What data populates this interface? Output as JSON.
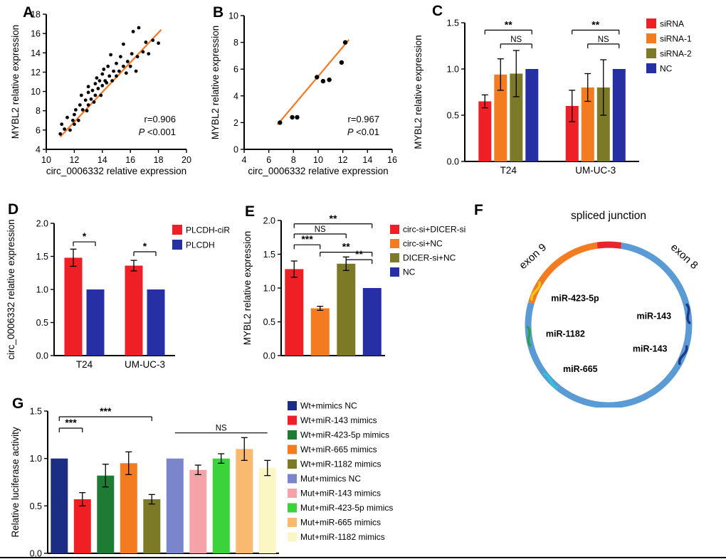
{
  "chart_data": [
    {
      "id": "A",
      "label": "A",
      "type": "scatter",
      "xlabel": "circ_0006332 relative expression",
      "ylabel": "MYBL2 relative expression",
      "xlim": [
        10,
        20
      ],
      "xticks": [
        10,
        12,
        14,
        16,
        18,
        20
      ],
      "ylim": [
        4,
        18
      ],
      "yticks": [
        4,
        6,
        8,
        10,
        12,
        14,
        16,
        18
      ],
      "r_text": "r=0.906",
      "p_label": "P",
      "p_text": " <0.001",
      "trend": {
        "x1": 11.0,
        "y1": 5.3,
        "x2": 18.2,
        "y2": 16.4
      },
      "trend_color": "#F8761F",
      "point_color": "#000000",
      "points": [
        [
          11.0,
          5.6
        ],
        [
          11.1,
          6.6
        ],
        [
          11.3,
          6.1
        ],
        [
          11.5,
          7.3
        ],
        [
          11.7,
          6.0
        ],
        [
          11.9,
          7.0
        ],
        [
          12.0,
          6.6
        ],
        [
          12.0,
          7.6
        ],
        [
          12.1,
          8.1
        ],
        [
          12.3,
          7.0
        ],
        [
          12.4,
          8.6
        ],
        [
          12.5,
          9.6
        ],
        [
          12.6,
          8.1
        ],
        [
          12.8,
          9.1
        ],
        [
          12.9,
          8.0
        ],
        [
          13.0,
          8.6
        ],
        [
          13.0,
          9.9
        ],
        [
          13.0,
          10.5
        ],
        [
          13.2,
          9.2
        ],
        [
          13.3,
          10.1
        ],
        [
          13.4,
          8.9
        ],
        [
          13.5,
          10.8
        ],
        [
          13.5,
          9.6
        ],
        [
          13.6,
          11.4
        ],
        [
          13.7,
          10.3
        ],
        [
          13.8,
          11.1
        ],
        [
          13.9,
          9.6
        ],
        [
          14.0,
          10.6
        ],
        [
          14.0,
          11.8
        ],
        [
          14.1,
          12.3
        ],
        [
          14.2,
          11.1
        ],
        [
          14.3,
          10.9
        ],
        [
          14.4,
          12.6
        ],
        [
          14.5,
          11.6
        ],
        [
          14.6,
          13.8
        ],
        [
          14.7,
          11.1
        ],
        [
          14.8,
          12.1
        ],
        [
          15.0,
          11.6
        ],
        [
          15.0,
          12.9
        ],
        [
          15.2,
          12.1
        ],
        [
          15.3,
          13.6
        ],
        [
          15.5,
          12.6
        ],
        [
          15.5,
          14.9
        ],
        [
          15.7,
          11.9
        ],
        [
          15.8,
          13.1
        ],
        [
          16.0,
          12.6
        ],
        [
          16.1,
          13.9
        ],
        [
          16.2,
          16.2
        ],
        [
          16.4,
          12.1
        ],
        [
          16.5,
          13.6
        ],
        [
          16.6,
          16.6
        ],
        [
          16.9,
          14.1
        ],
        [
          17.1,
          15.1
        ],
        [
          17.3,
          13.9
        ],
        [
          17.6,
          15.3
        ],
        [
          18.0,
          15.0
        ]
      ]
    },
    {
      "id": "B",
      "label": "B",
      "type": "scatter",
      "xlabel": "circ_0006332 relative expression",
      "ylabel": "MYBL2 relative expression",
      "xlim": [
        4,
        16
      ],
      "xticks": [
        4,
        6,
        8,
        10,
        12,
        14,
        16
      ],
      "ylim": [
        0,
        10
      ],
      "yticks": [
        0,
        2,
        4,
        6,
        8,
        10
      ],
      "r_text": "r=0.967",
      "p_label": "P",
      "p_text": " <0.01",
      "trend": {
        "x1": 6.7,
        "y1": 1.85,
        "x2": 12.5,
        "y2": 8.2
      },
      "trend_color": "#F8761F",
      "point_color": "#000000",
      "points": [
        [
          6.9,
          2.0
        ],
        [
          7.9,
          2.4
        ],
        [
          8.3,
          2.4
        ],
        [
          9.9,
          5.4
        ],
        [
          10.4,
          5.1
        ],
        [
          10.9,
          5.2
        ],
        [
          11.9,
          6.5
        ],
        [
          12.2,
          8.0
        ]
      ]
    },
    {
      "id": "C",
      "label": "C",
      "type": "grouped-bars",
      "ylabel": "MYBL2 relative expression",
      "ylim": [
        0,
        1.5
      ],
      "yticks": [
        "0.0",
        "0.5",
        "1.0",
        "1.5"
      ],
      "groups": [
        "T24",
        "UM-UC-3"
      ],
      "series": [
        {
          "name": "siRNA",
          "color": "#EE1F25",
          "values": [
            0.65,
            0.6
          ],
          "errors": [
            0.07,
            0.17
          ]
        },
        {
          "name": "siRNA-1",
          "color": "#F47C20",
          "values": [
            0.94,
            0.8
          ],
          "errors": [
            0.17,
            0.15
          ]
        },
        {
          "name": "siRNA-2",
          "color": "#7D7A27",
          "values": [
            0.95,
            0.8
          ],
          "errors": [
            0.25,
            0.3
          ]
        },
        {
          "name": "NC",
          "color": "#2630A4",
          "values": [
            1.0,
            1.0
          ],
          "errors": [
            0,
            0
          ]
        }
      ],
      "brackets": [
        {
          "group": 0,
          "from": 0,
          "to": 3,
          "label": "**",
          "y": 1.42
        },
        {
          "group": 0,
          "from": 1,
          "to": 3,
          "label": "NS",
          "y": 1.27
        },
        {
          "group": 1,
          "from": 0,
          "to": 3,
          "label": "**",
          "y": 1.42
        },
        {
          "group": 1,
          "from": 1,
          "to": 3,
          "label": "NS",
          "y": 1.27
        }
      ]
    },
    {
      "id": "D",
      "label": "D",
      "type": "grouped-bars",
      "ylabel": "circ_0006332 relative expression",
      "ylim": [
        0,
        2
      ],
      "yticks": [
        "0.0",
        "0.5",
        "1.0",
        "1.5",
        "2.0"
      ],
      "groups": [
        "T24",
        "UM-UC-3"
      ],
      "series": [
        {
          "name": "PLCDH-ciR",
          "color": "#EE1F25",
          "values": [
            1.48,
            1.36
          ],
          "errors": [
            0.13,
            0.08
          ]
        },
        {
          "name": "PLCDH",
          "color": "#2630A4",
          "values": [
            1.0,
            1.0
          ],
          "errors": [
            0,
            0
          ]
        }
      ],
      "brackets": [
        {
          "group": 0,
          "from": 0,
          "to": 1,
          "label": "*",
          "y": 1.72
        },
        {
          "group": 1,
          "from": 0,
          "to": 1,
          "label": "*",
          "y": 1.57
        }
      ]
    },
    {
      "id": "E",
      "label": "E",
      "type": "bars",
      "ylabel": "MYBL2 relative expression",
      "ylim": [
        0,
        2
      ],
      "yticks": [
        "0.0",
        "0.5",
        "1.0",
        "1.5",
        "2.0"
      ],
      "bars": [
        {
          "name": "circ-si+DICER-si",
          "color": "#EE1F25",
          "value": 1.28,
          "error": 0.12
        },
        {
          "name": "circ-si+NC",
          "color": "#F47C20",
          "value": 0.7,
          "error": 0.03
        },
        {
          "name": "DICER-si+NC",
          "color": "#7D7A27",
          "value": 1.36,
          "error": 0.1
        },
        {
          "name": "NC",
          "color": "#2630A4",
          "value": 1.0,
          "error": 0
        }
      ],
      "brackets": [
        {
          "from": 0,
          "to": 3,
          "label": "**",
          "y": 1.95
        },
        {
          "from": 0,
          "to": 2,
          "label": "NS",
          "y": 1.8
        },
        {
          "from": 0,
          "to": 1,
          "label": "***",
          "y": 1.64
        },
        {
          "from": 1,
          "to": 3,
          "label": "**",
          "y": 1.53
        },
        {
          "from": 2,
          "to": 3,
          "label": "**",
          "y": 1.42
        }
      ]
    },
    {
      "id": "F",
      "label": "F",
      "type": "circle-map",
      "title": "spliced junction",
      "exon8_label": "exon 8",
      "exon9_label": "exon 9",
      "colors": {
        "exon8": "#5B9BD5",
        "exon9": "#F47C20",
        "junction": "#E8252A"
      },
      "exon8_arc": [
        279,
        556
      ],
      "exon9_arc": [
        196,
        265
      ],
      "junction_arc": [
        262,
        279
      ],
      "mirnas": [
        {
          "name": "miR-423-5p",
          "color": "#F2C413",
          "angle": 205
        },
        {
          "name": "miR-1182",
          "color": "#2E9E4F",
          "angle": 172
        },
        {
          "name": "miR-665",
          "color": "#2BC6D8",
          "angle": 136
        },
        {
          "name": "miR-143",
          "color": "#1E3A8A",
          "angle": 352
        },
        {
          "name": "miR-143",
          "color": "#1E3A8A",
          "angle": 22
        }
      ]
    },
    {
      "id": "G",
      "label": "G",
      "type": "bars",
      "ylabel": "Relative luciferase activity",
      "ylim": [
        0,
        1.5
      ],
      "yticks": [
        "0.0",
        "0.5",
        "1.0",
        "1.5"
      ],
      "bars": [
        {
          "name": "Wt+mimics NC",
          "color": "#1C2E83",
          "value": 1.0,
          "error": 0
        },
        {
          "name": "Wt+miR-143 mimics",
          "color": "#EE1F25",
          "value": 0.57,
          "error": 0.07
        },
        {
          "name": "Wt+miR-423-5p mimics",
          "color": "#1E7B34",
          "value": 0.82,
          "error": 0.12
        },
        {
          "name": "Wt+miR-665 mimics",
          "color": "#F47C20",
          "value": 0.95,
          "error": 0.12
        },
        {
          "name": "Wt+miR-1182 mimics",
          "color": "#7D7A27",
          "value": 0.57,
          "error": 0.05
        },
        {
          "name": "Mut+mimics NC",
          "color": "#7B85CC",
          "value": 1.0,
          "error": 0
        },
        {
          "name": "Mut+miR-143 mimics",
          "color": "#F5A3A9",
          "value": 0.88,
          "error": 0.05
        },
        {
          "name": "Mut+miR-423-5p mimics",
          "color": "#3BD23B",
          "value": 1.0,
          "error": 0.05
        },
        {
          "name": "Mut+miR-665 mimics",
          "color": "#F9BA6F",
          "value": 1.1,
          "error": 0.12
        },
        {
          "name": "Mut+miR-1182 mimics",
          "color": "#FBF7C5",
          "value": 0.9,
          "error": 0.08
        }
      ],
      "brackets": [
        {
          "from": 0,
          "to": 1,
          "label": "***",
          "y": 1.32
        },
        {
          "from": 0,
          "to": 4,
          "label": "***",
          "y": 1.44
        },
        {
          "from": 5,
          "to": 9,
          "label": "NS",
          "y": 1.27,
          "flat": true
        }
      ]
    }
  ]
}
